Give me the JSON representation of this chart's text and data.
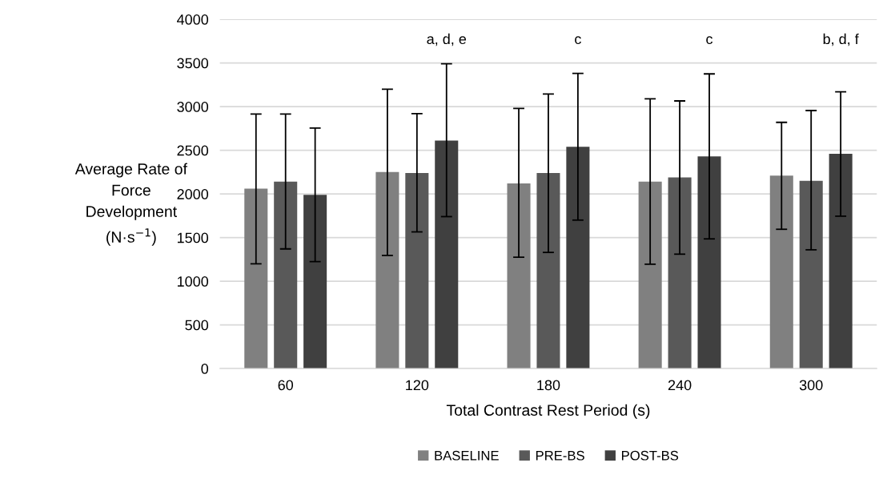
{
  "chart_data": {
    "type": "bar",
    "xlabel": "Total Contrast Rest Period (s)",
    "ylabel": "Average Rate of\nForce\nDevelopment\n(N·s$^{−1}$)",
    "categories": [
      "60",
      "120",
      "180",
      "240",
      "300"
    ],
    "series": [
      {
        "name": "BASELINE",
        "color": "#808080",
        "values": [
          2060,
          2250,
          2120,
          2140,
          2210
        ],
        "errors": [
          [
            1200,
            2915
          ],
          [
            1295,
            3200
          ],
          [
            1275,
            2980
          ],
          [
            1195,
            3090
          ],
          [
            1595,
            2820
          ]
        ]
      },
      {
        "name": "PRE-BS",
        "color": "#595959",
        "values": [
          2140,
          2240,
          2240,
          2190,
          2150
        ],
        "errors": [
          [
            1370,
            2915
          ],
          [
            1565,
            2920
          ],
          [
            1330,
            3145
          ],
          [
            1310,
            3065
          ],
          [
            1360,
            2955
          ]
        ]
      },
      {
        "name": "POST-BS",
        "color": "#404040",
        "values": [
          1990,
          2610,
          2540,
          2430,
          2460
        ],
        "errors": [
          [
            1225,
            2755
          ],
          [
            1740,
            3490
          ],
          [
            1700,
            3380
          ],
          [
            1485,
            3375
          ],
          [
            1745,
            3170
          ]
        ]
      }
    ],
    "ylim": [
      0,
      4000
    ],
    "yticks": [
      0,
      500,
      1000,
      1500,
      2000,
      2500,
      3000,
      3500,
      4000
    ],
    "grid": "y",
    "legend": "bottom",
    "annotations": [
      "a, d, e",
      "c",
      "c",
      "b, d, f"
    ]
  }
}
